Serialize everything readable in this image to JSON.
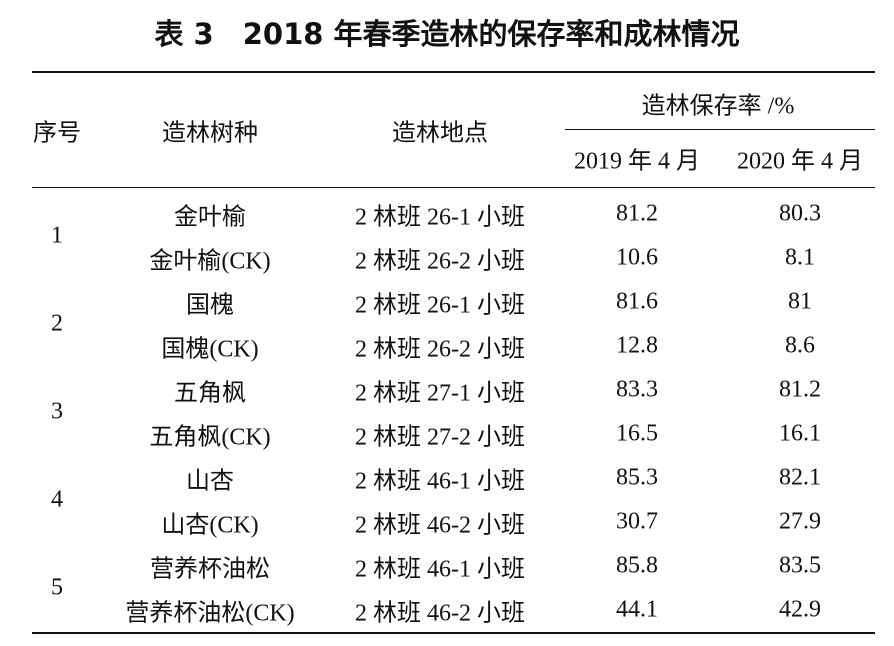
{
  "title": "表 3　2018 年春季造林的保存率和成林情况",
  "table": {
    "header": {
      "number": "序号",
      "species": "造林树种",
      "location": "造林地点",
      "rate": "造林保存率 /%",
      "years": [
        "2019 年 4 月",
        "2020 年 4 月"
      ]
    },
    "groups": [
      {
        "number": 1,
        "rows": [
          [
            "金叶榆",
            "2 林班 26-1 小班",
            81.2,
            80.3
          ],
          [
            "金叶榆(CK)",
            "2 林班 26-2 小班",
            10.6,
            8.1
          ]
        ]
      },
      {
        "number": 2,
        "rows": [
          [
            "国槐",
            "2 林班 26-1 小班",
            81.6,
            81
          ],
          [
            "国槐(CK)",
            "2 林班 26-2 小班",
            12.8,
            8.6
          ]
        ]
      },
      {
        "number": 3,
        "rows": [
          [
            "五角枫",
            "2 林班 27-1 小班",
            83.3,
            81.2
          ],
          [
            "五角枫(CK)",
            "2 林班 27-2 小班",
            16.5,
            16.1
          ]
        ]
      },
      {
        "number": 4,
        "rows": [
          [
            "山杏",
            "2 林班 46-1 小班",
            85.3,
            82.1
          ],
          [
            "山杏(CK)",
            "2 林班 46-2 小班",
            30.7,
            27.9
          ]
        ]
      },
      {
        "number": 5,
        "rows": [
          [
            "营养杯油松",
            "2 林班 46-1 小班",
            85.8,
            83.5
          ],
          [
            "营养杯油松(CK)",
            "2 林班 46-2 小班",
            44.1,
            42.9
          ]
        ]
      }
    ]
  }
}
